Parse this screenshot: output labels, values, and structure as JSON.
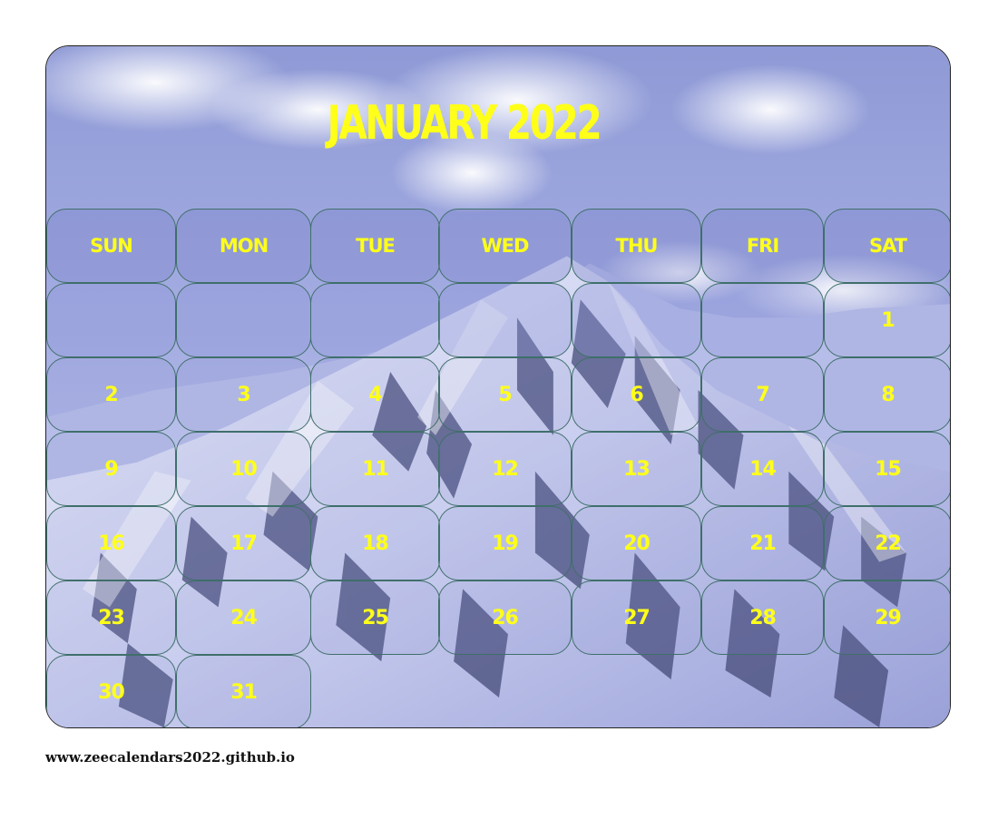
{
  "calendar": {
    "title": "JANUARY 2022",
    "weekdays": [
      "SUN",
      "MON",
      "TUE",
      "WED",
      "THU",
      "FRI",
      "SAT"
    ],
    "weeks": [
      [
        "",
        "",
        "",
        "",
        "",
        "",
        "1"
      ],
      [
        "2",
        "3",
        "4",
        "5",
        "6",
        "7",
        "8"
      ],
      [
        "9",
        "10",
        "11",
        "12",
        "13",
        "14",
        "15"
      ],
      [
        "16",
        "17",
        "18",
        "19",
        "20",
        "21",
        "22"
      ],
      [
        "23",
        "24",
        "25",
        "26",
        "27",
        "28",
        "29"
      ],
      [
        "30",
        "31"
      ]
    ]
  },
  "footer": {
    "url": "www.zeecalendars2022.github.io"
  },
  "colors": {
    "text_accent": "#ffff1a",
    "cell_border": "#3f6f6a"
  },
  "background": {
    "subject": "snow-covered-mountain-icon"
  }
}
